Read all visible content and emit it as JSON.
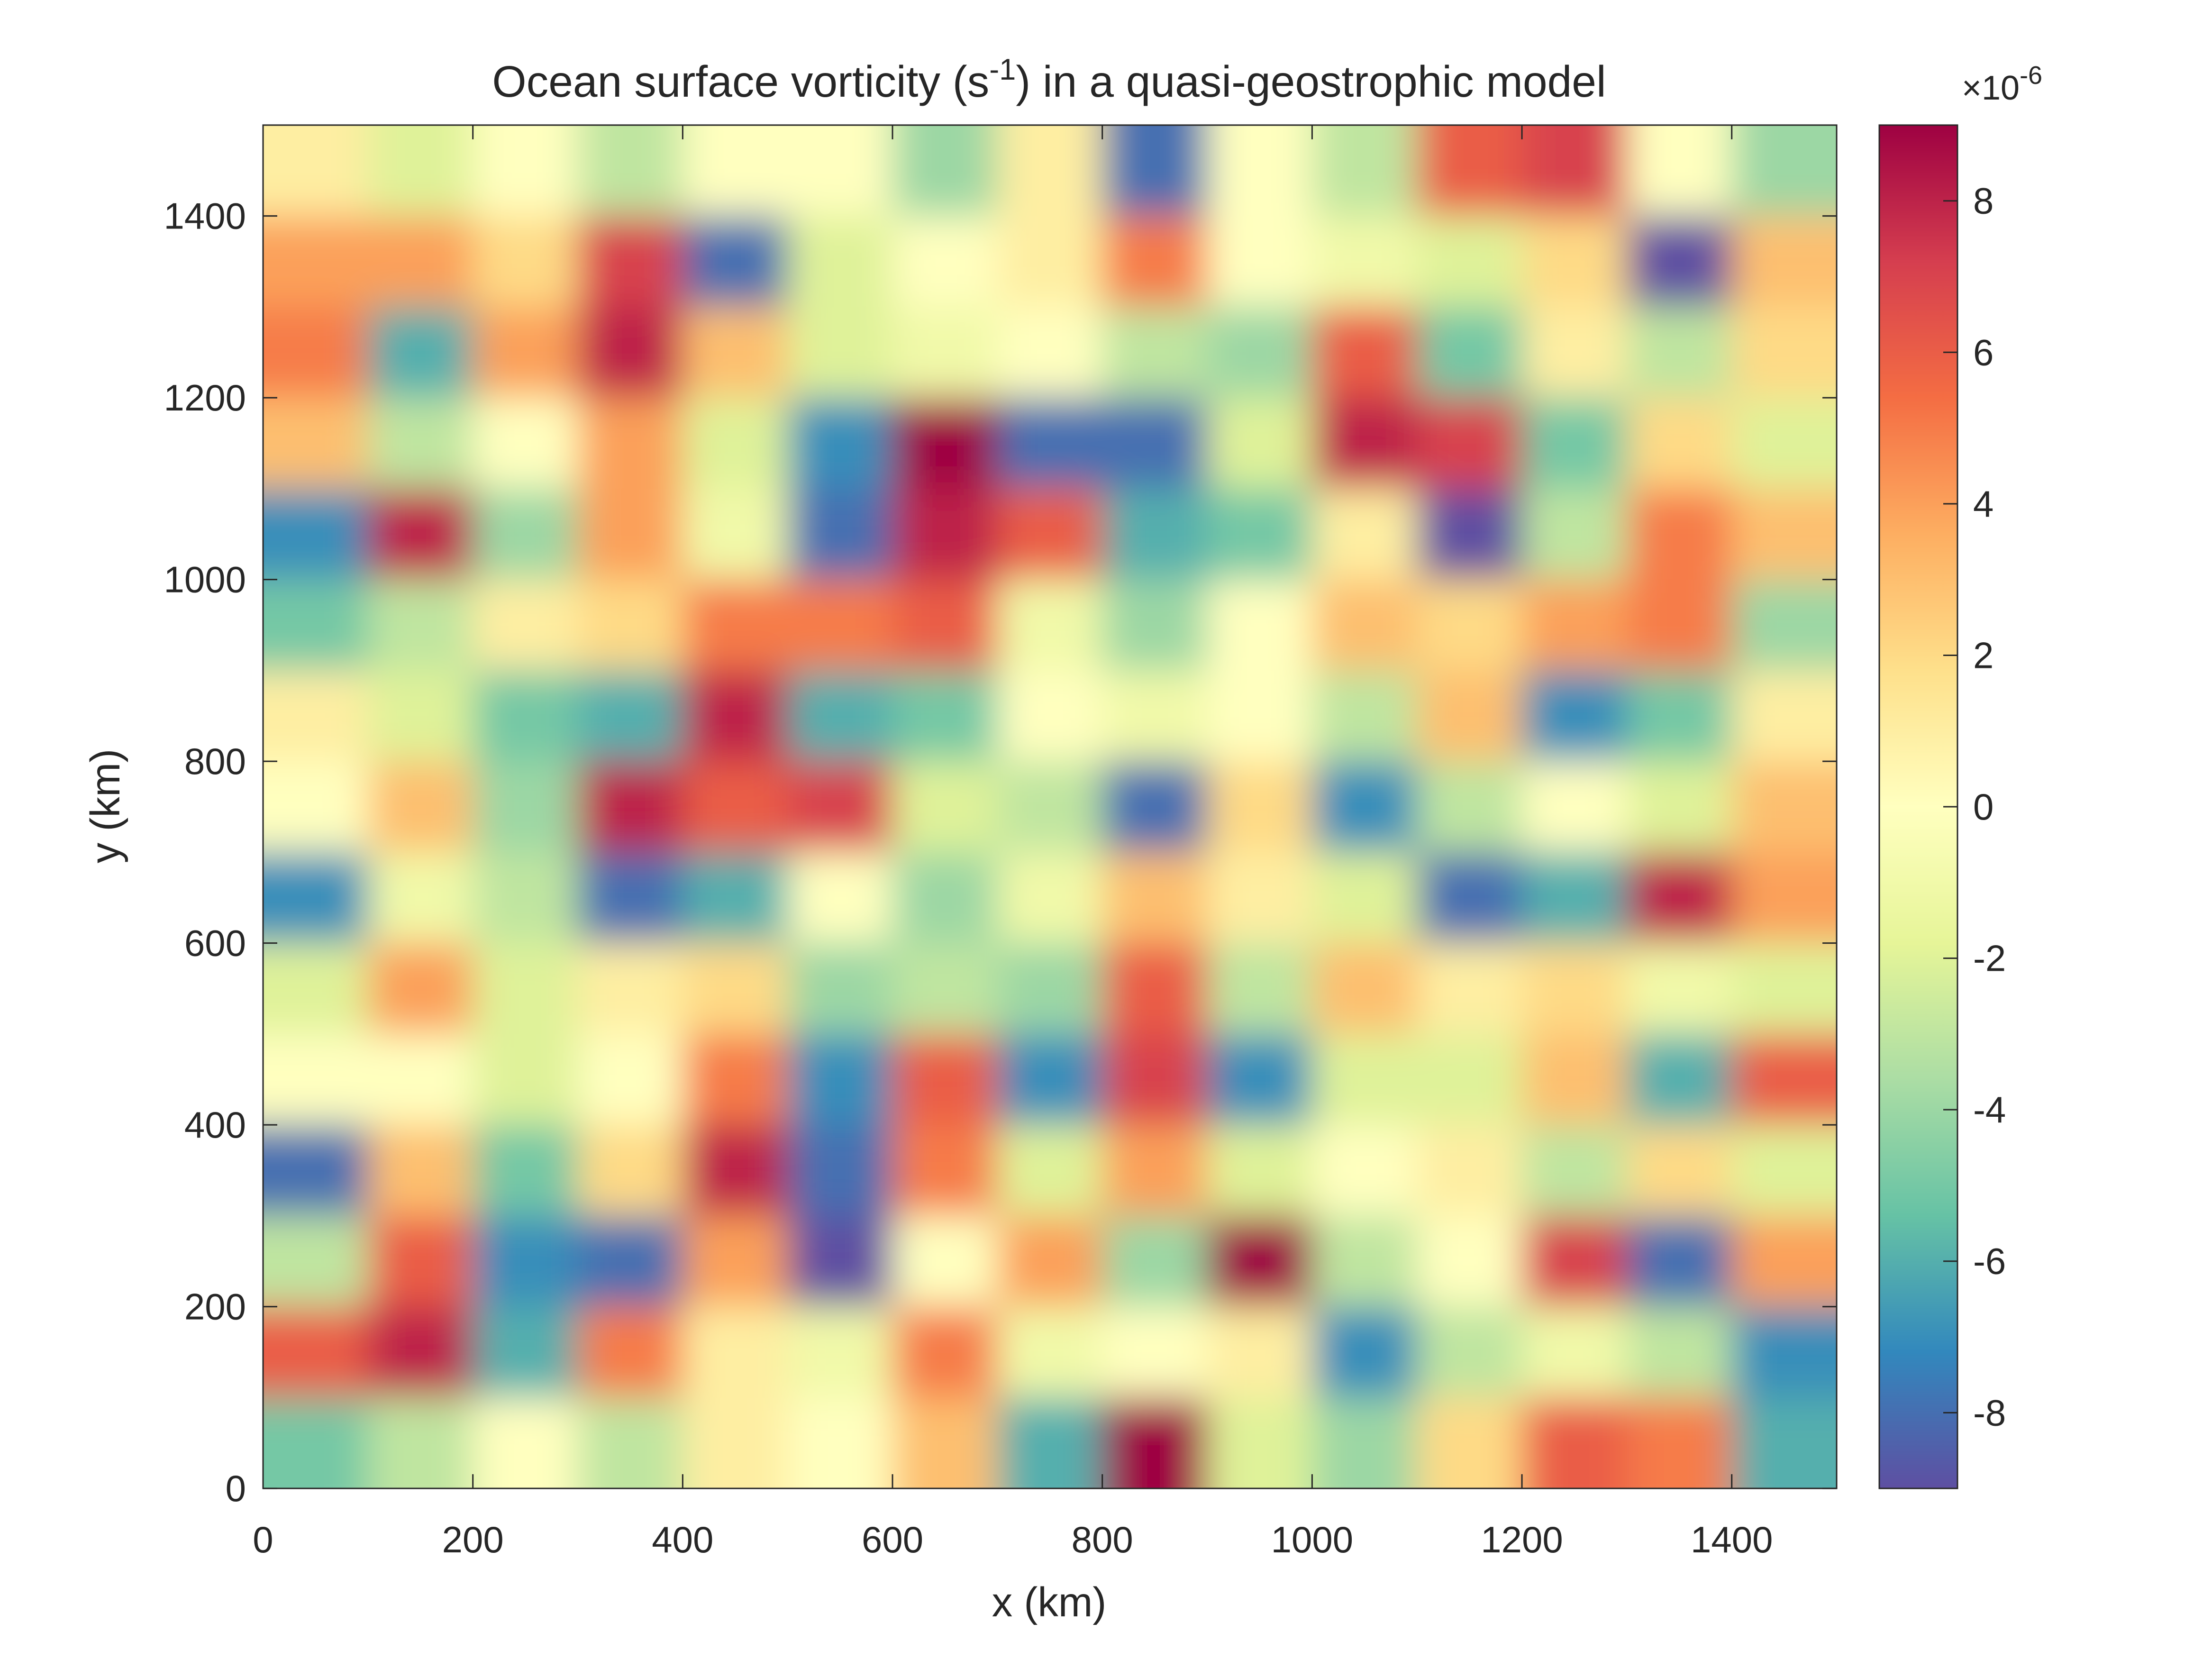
{
  "chart_data": {
    "type": "contourf",
    "title": [
      "Ocean surface vorticity (s",
      "-1",
      ") in a quasi-geostrophic model"
    ],
    "x_label": "x (km)",
    "y_label": "y (km)",
    "x": [
      50,
      150,
      250,
      350,
      450,
      550,
      650,
      750,
      850,
      950,
      1050,
      1150,
      1250,
      1350,
      1450
    ],
    "y": [
      1450,
      1350,
      1250,
      1150,
      1050,
      950,
      850,
      750,
      650,
      550,
      450,
      350,
      250,
      150,
      50
    ],
    "z": [
      [
        1,
        -2,
        0,
        -3,
        0,
        0,
        -4,
        1,
        -8,
        0,
        -3,
        6,
        7,
        0,
        -4
      ],
      [
        4,
        4,
        2,
        7,
        -8,
        -2,
        0,
        1,
        5,
        0,
        -1,
        -2,
        2,
        -9,
        3
      ],
      [
        5,
        -6,
        4,
        8,
        3,
        -2,
        -1,
        0,
        -3,
        -4,
        6,
        -5,
        1,
        -3,
        2
      ],
      [
        3,
        -3,
        0,
        4,
        -2,
        -7,
        9,
        -8,
        -8,
        -2,
        8,
        7,
        -5,
        2,
        -2
      ],
      [
        -7,
        8,
        -4,
        4,
        -1,
        -8,
        8,
        6,
        -6,
        -5,
        1,
        -9,
        -3,
        5,
        3
      ],
      [
        -5,
        -3,
        1,
        2,
        5,
        5,
        6,
        -1,
        -4,
        0,
        3,
        2,
        4,
        5,
        -4
      ],
      [
        1,
        -2,
        -5,
        -6,
        8,
        -6,
        -5,
        0,
        -1,
        0,
        -3,
        3,
        -7,
        -5,
        1
      ],
      [
        0,
        3,
        -4,
        8,
        6,
        7,
        -2,
        -3,
        -8,
        2,
        -7,
        -3,
        0,
        -2,
        3
      ],
      [
        -7,
        -1,
        -3,
        -8,
        -6,
        0,
        -4,
        -1,
        3,
        1,
        -2,
        -8,
        -6,
        8,
        4
      ],
      [
        -2,
        4,
        -2,
        1,
        2,
        -4,
        -3,
        -4,
        6,
        -3,
        3,
        1,
        2,
        -1,
        -2
      ],
      [
        0,
        0,
        -2,
        0,
        5,
        -7,
        6,
        -7,
        7,
        -7,
        -2,
        -2,
        3,
        -6,
        6
      ],
      [
        -8,
        3,
        -5,
        2,
        8,
        -8,
        5,
        -2,
        4,
        -2,
        0,
        1,
        -3,
        2,
        -2
      ],
      [
        -3,
        6,
        -7,
        -8,
        4,
        -9,
        0,
        4,
        -4,
        9,
        -3,
        0,
        7,
        -8,
        4
      ],
      [
        6,
        8,
        -6,
        5,
        1,
        -1,
        5,
        -1,
        0,
        1,
        -7,
        -3,
        -1,
        -3,
        -7
      ],
      [
        -5,
        -3,
        0,
        -3,
        1,
        0,
        3,
        -6,
        9,
        -2,
        -4,
        2,
        6,
        5,
        -6
      ]
    ],
    "xlim": [
      0,
      1500
    ],
    "ylim": [
      0,
      1500
    ],
    "xticks": [
      0,
      200,
      400,
      600,
      800,
      1000,
      1200,
      1400
    ],
    "yticks": [
      0,
      200,
      400,
      600,
      800,
      1000,
      1200,
      1400
    ],
    "clim": [
      -9,
      9
    ],
    "cticks": [
      -8,
      -6,
      -4,
      -2,
      0,
      2,
      4,
      6,
      8
    ],
    "colorbar_multiplier": [
      "×10",
      "-6"
    ],
    "colormap": [
      "#5e4fa2",
      "#3288bd",
      "#66c2a5",
      "#abdda4",
      "#e6f598",
      "#ffffbf",
      "#fee08b",
      "#fdae61",
      "#f46d43",
      "#d53e4f",
      "#9e0142"
    ]
  }
}
